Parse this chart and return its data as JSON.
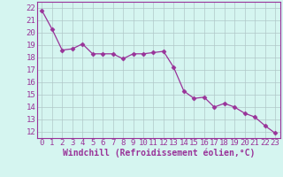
{
  "x": [
    0,
    1,
    2,
    3,
    4,
    5,
    6,
    7,
    8,
    9,
    10,
    11,
    12,
    13,
    14,
    15,
    16,
    17,
    18,
    19,
    20,
    21,
    22,
    23
  ],
  "y": [
    21.8,
    20.3,
    18.6,
    18.7,
    19.1,
    18.3,
    18.3,
    18.3,
    17.9,
    18.3,
    18.3,
    18.4,
    18.5,
    17.2,
    15.3,
    14.7,
    14.8,
    14.0,
    14.3,
    14.0,
    13.5,
    13.2,
    12.5,
    11.9
  ],
  "line_color": "#993399",
  "marker": "D",
  "marker_size": 2.5,
  "bg_color": "#d5f5f0",
  "grid_color": "#b0c8c8",
  "xlabel": "Windchill (Refroidissement éolien,°C)",
  "xticks": [
    0,
    1,
    2,
    3,
    4,
    5,
    6,
    7,
    8,
    9,
    10,
    11,
    12,
    13,
    14,
    15,
    16,
    17,
    18,
    19,
    20,
    21,
    22,
    23
  ],
  "yticks": [
    12,
    13,
    14,
    15,
    16,
    17,
    18,
    19,
    20,
    21,
    22
  ],
  "ylim": [
    11.5,
    22.5
  ],
  "xlim": [
    -0.5,
    23.5
  ],
  "tick_fontsize": 6.5,
  "xlabel_fontsize": 7.0
}
